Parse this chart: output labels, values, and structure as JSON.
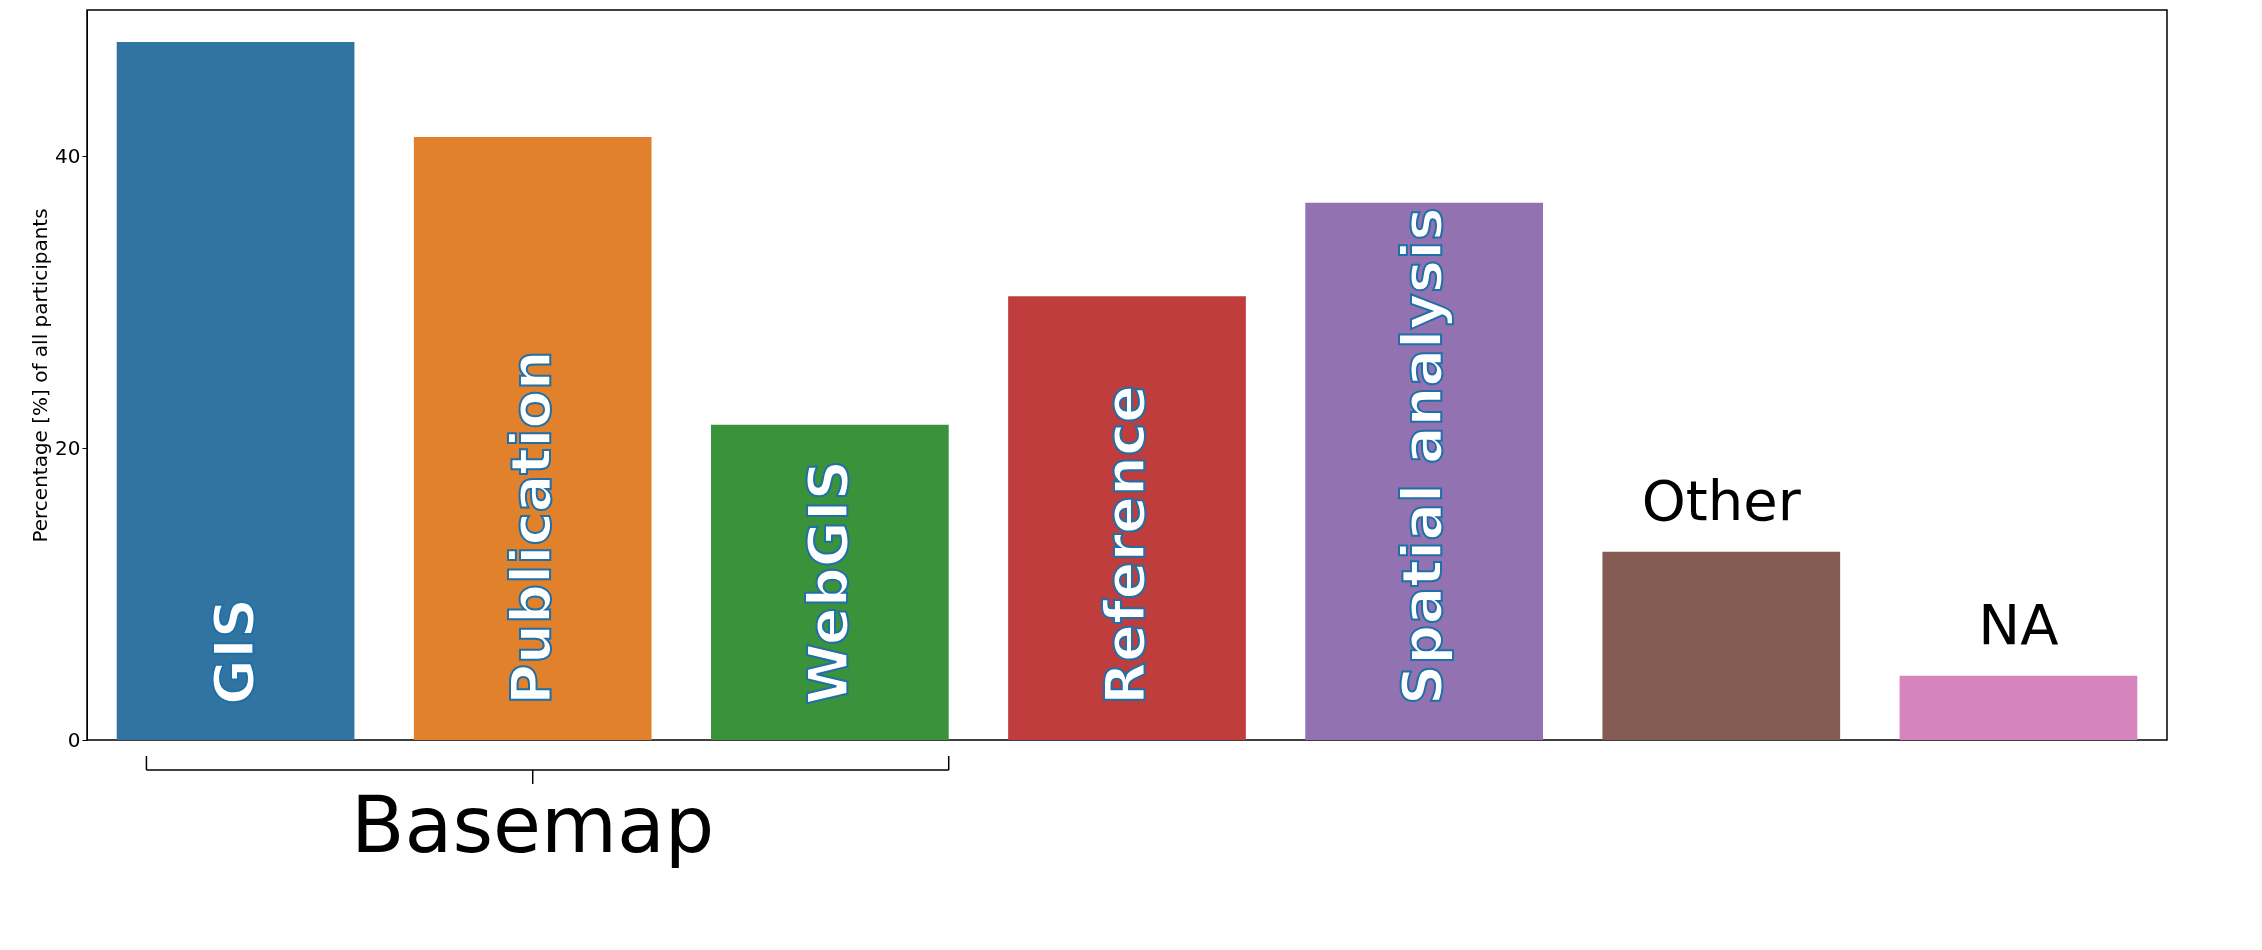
{
  "chart_data": {
    "type": "bar",
    "ylabel": "Percentage [%] of all participants",
    "categories": [
      "GIS",
      "Publication",
      "WebGIS",
      "Reference",
      "Spatial analysis",
      "Other",
      "NA"
    ],
    "values": [
      47.8,
      41.3,
      21.6,
      30.4,
      36.8,
      12.9,
      4.4
    ],
    "colors": [
      "#3274a1",
      "#e1812c",
      "#3a923a",
      "#c03d3e",
      "#9372b2",
      "#845b53",
      "#d684bd"
    ],
    "ylim": [
      0,
      50
    ],
    "yticks": [
      0,
      20,
      40
    ],
    "grid": false,
    "legend": false,
    "tick_labels": "y",
    "annotations": [
      {
        "text": "Basemap",
        "x": "Publication"
      }
    ]
  }
}
